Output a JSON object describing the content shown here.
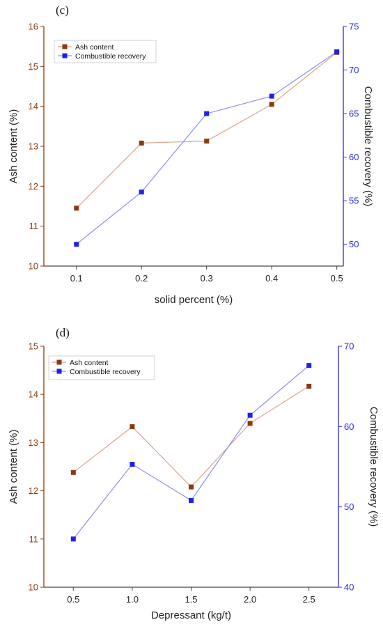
{
  "chart_data": [
    {
      "type": "line",
      "panel_label": "(c)",
      "xlabel": "solid percent (%)",
      "ylabel_left": "Ash content (%)",
      "ylabel_right": "Combustible recovery (%)",
      "x": [
        0.1,
        0.2,
        0.3,
        0.4,
        0.5
      ],
      "x_ticks": [
        "0.1",
        "0.2",
        "0.3",
        "0.4",
        "0.5"
      ],
      "xlim": [
        0.05,
        0.51
      ],
      "ylim_left": [
        10,
        16
      ],
      "ylim_right": [
        47.5,
        75
      ],
      "y_ticks_left": [
        "10",
        "11",
        "12",
        "13",
        "14",
        "15",
        "16"
      ],
      "y_ticks_right": [
        "50",
        "55",
        "60",
        "65",
        "70",
        "75"
      ],
      "legend_position": "top-left",
      "series": [
        {
          "name": "Ash content",
          "axis": "left",
          "color": "#8b3a0f",
          "line_color": "#d9a58a",
          "values": [
            11.45,
            13.08,
            13.13,
            14.05,
            15.35
          ]
        },
        {
          "name": "Combustible recovery",
          "axis": "right",
          "color": "#2020ee",
          "line_color": "#8d8dee",
          "values": [
            50.0,
            56.0,
            65.0,
            67.0,
            72.1
          ]
        }
      ]
    },
    {
      "type": "line",
      "panel_label": "(d)",
      "xlabel": "Depressant (kg/t)",
      "ylabel_left": "Ash content (%)",
      "ylabel_right": "Combustible recovery (%)",
      "x": [
        0.5,
        1.0,
        1.5,
        2.0,
        2.5
      ],
      "x_ticks": [
        "0.5",
        "1.0",
        "1.5",
        "2.0",
        "2.5"
      ],
      "xlim": [
        0.25,
        2.75
      ],
      "ylim_left": [
        10,
        15
      ],
      "ylim_right": [
        40,
        70
      ],
      "y_ticks_left": [
        "10",
        "11",
        "12",
        "13",
        "14",
        "15"
      ],
      "y_ticks_right": [
        "40",
        "50",
        "60",
        "70"
      ],
      "legend_position": "top-left",
      "series": [
        {
          "name": "Ash content",
          "axis": "left",
          "color": "#8b3a0f",
          "line_color": "#d9a58a",
          "values": [
            12.38,
            13.33,
            12.08,
            13.4,
            14.17
          ]
        },
        {
          "name": "Combustible recovery",
          "axis": "right",
          "color": "#2020ee",
          "line_color": "#8d8dee",
          "values": [
            46.0,
            55.3,
            50.8,
            61.4,
            67.6
          ]
        }
      ]
    }
  ]
}
